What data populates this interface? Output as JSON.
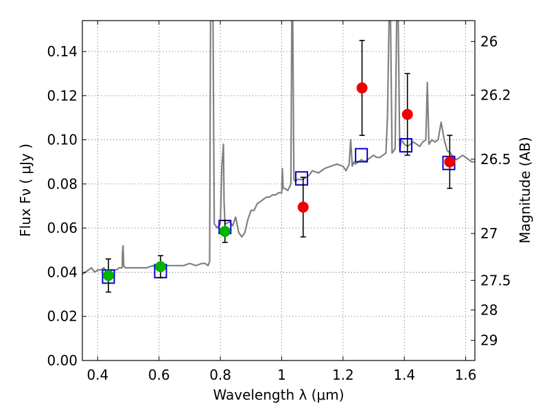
{
  "chart_data": {
    "type": "scatter",
    "xlabel": "Wavelength  λ (μm)",
    "ylabel": "Flux  Fν  ( μJy )",
    "ylabel_right": "Magnitude (AB)",
    "xlim": [
      0.35,
      1.63
    ],
    "ylim": [
      0.0,
      0.154
    ],
    "grid": true,
    "x_ticks": [
      {
        "value": 0.4,
        "label": "0.4"
      },
      {
        "value": 0.6,
        "label": "0.6"
      },
      {
        "value": 0.8,
        "label": "0.8"
      },
      {
        "value": 1.0,
        "label": "1"
      },
      {
        "value": 1.2,
        "label": "1.2"
      },
      {
        "value": 1.4,
        "label": "1.4"
      },
      {
        "value": 1.6,
        "label": "1.6"
      }
    ],
    "y_ticks": [
      {
        "value": 0.0,
        "label": "0.00"
      },
      {
        "value": 0.02,
        "label": "0.02"
      },
      {
        "value": 0.04,
        "label": "0.04"
      },
      {
        "value": 0.06,
        "label": "0.06"
      },
      {
        "value": 0.08,
        "label": "0.08"
      },
      {
        "value": 0.1,
        "label": "0.10"
      },
      {
        "value": 0.12,
        "label": "0.12"
      },
      {
        "value": 0.14,
        "label": "0.14"
      }
    ],
    "right_ticks": [
      {
        "mag": 26.0,
        "label": "26"
      },
      {
        "mag": 26.2,
        "label": "26.2"
      },
      {
        "mag": 26.5,
        "label": "26.5"
      },
      {
        "mag": 27.0,
        "label": "27"
      },
      {
        "mag": 27.5,
        "label": "27.5"
      },
      {
        "mag": 28.0,
        "label": "28"
      },
      {
        "mag": 29.0,
        "label": "29"
      }
    ],
    "series": [
      {
        "type": "line",
        "color": "#808080",
        "x": [
          0.35,
          0.36,
          0.37,
          0.38,
          0.39,
          0.4,
          0.41,
          0.42,
          0.43,
          0.44,
          0.45,
          0.46,
          0.47,
          0.48,
          0.481,
          0.483,
          0.485,
          0.49,
          0.5,
          0.52,
          0.54,
          0.56,
          0.58,
          0.6,
          0.62,
          0.64,
          0.66,
          0.68,
          0.7,
          0.72,
          0.74,
          0.75,
          0.76,
          0.765,
          0.768,
          0.772,
          0.776,
          0.78,
          0.79,
          0.8,
          0.805,
          0.81,
          0.812,
          0.815,
          0.82,
          0.83,
          0.84,
          0.85,
          0.86,
          0.87,
          0.88,
          0.89,
          0.9,
          0.91,
          0.92,
          0.93,
          0.94,
          0.95,
          0.96,
          0.97,
          0.98,
          0.99,
          1.0,
          1.002,
          1.005,
          1.01,
          1.02,
          1.03,
          1.033,
          1.036,
          1.04,
          1.045,
          1.05,
          1.07,
          1.09,
          1.1,
          1.12,
          1.14,
          1.16,
          1.18,
          1.2,
          1.21,
          1.22,
          1.225,
          1.23,
          1.235,
          1.24,
          1.25,
          1.26,
          1.27,
          1.28,
          1.29,
          1.3,
          1.31,
          1.32,
          1.33,
          1.34,
          1.345,
          1.35,
          1.355,
          1.36,
          1.37,
          1.375,
          1.38,
          1.385,
          1.39,
          1.4,
          1.41,
          1.42,
          1.43,
          1.44,
          1.45,
          1.46,
          1.47,
          1.475,
          1.48,
          1.49,
          1.5,
          1.51,
          1.52,
          1.53,
          1.54,
          1.55,
          1.56,
          1.57,
          1.58,
          1.59,
          1.6,
          1.61,
          1.62,
          1.63
        ],
        "y": [
          0.039,
          0.04,
          0.041,
          0.042,
          0.04,
          0.041,
          0.041,
          0.042,
          0.04,
          0.041,
          0.041,
          0.041,
          0.042,
          0.042,
          0.049,
          0.052,
          0.043,
          0.042,
          0.042,
          0.042,
          0.042,
          0.042,
          0.043,
          0.042,
          0.043,
          0.043,
          0.043,
          0.043,
          0.044,
          0.043,
          0.044,
          0.044,
          0.043,
          0.045,
          0.154,
          0.154,
          0.154,
          0.062,
          0.06,
          0.062,
          0.088,
          0.098,
          0.072,
          0.062,
          0.062,
          0.063,
          0.061,
          0.065,
          0.058,
          0.056,
          0.058,
          0.064,
          0.068,
          0.068,
          0.071,
          0.072,
          0.073,
          0.074,
          0.074,
          0.075,
          0.075,
          0.076,
          0.076,
          0.087,
          0.078,
          0.078,
          0.077,
          0.08,
          0.154,
          0.154,
          0.082,
          0.081,
          0.082,
          0.082,
          0.084,
          0.086,
          0.085,
          0.087,
          0.088,
          0.089,
          0.088,
          0.086,
          0.089,
          0.1,
          0.088,
          0.09,
          0.089,
          0.09,
          0.091,
          0.09,
          0.091,
          0.092,
          0.093,
          0.092,
          0.092,
          0.093,
          0.094,
          0.11,
          0.154,
          0.154,
          0.094,
          0.096,
          0.154,
          0.154,
          0.095,
          0.1,
          0.098,
          0.097,
          0.098,
          0.099,
          0.098,
          0.097,
          0.099,
          0.1,
          0.126,
          0.098,
          0.1,
          0.099,
          0.1,
          0.108,
          0.1,
          0.095,
          0.094,
          0.092,
          0.091,
          0.092,
          0.093,
          0.092,
          0.091,
          0.09,
          0.09
        ]
      },
      {
        "type": "scatter",
        "marker": "square-open",
        "color": "#0000cc",
        "x": [
          0.435,
          0.605,
          0.815,
          1.065,
          1.26,
          1.405,
          1.545
        ],
        "y": [
          0.038,
          0.0405,
          0.0605,
          0.0825,
          0.093,
          0.0975,
          0.0895
        ]
      },
      {
        "type": "scatter",
        "marker": "circle",
        "color": "#00b400",
        "x": [
          0.435,
          0.605,
          0.815
        ],
        "y": [
          0.0385,
          0.0425,
          0.0585
        ],
        "yerr": [
          0.0075,
          0.005,
          0.005
        ]
      },
      {
        "type": "scatter",
        "marker": "circle",
        "color": "#ee0000",
        "x": [
          1.07,
          1.262,
          1.41,
          1.548
        ],
        "y": [
          0.0695,
          0.1235,
          0.1115,
          0.09
        ],
        "yerr": [
          0.0135,
          0.0215,
          0.0185,
          0.012
        ]
      }
    ]
  }
}
